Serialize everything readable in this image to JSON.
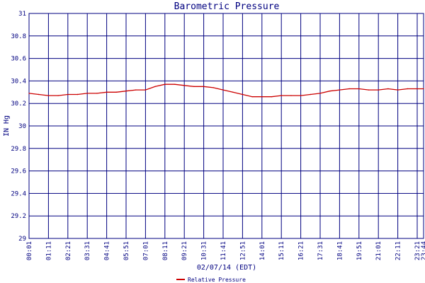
{
  "chart_data": {
    "type": "line",
    "title": "Barometric Pressure",
    "xlabel": "02/07/14 (EDT)",
    "ylabel": "IN Hg",
    "ylim": [
      29,
      31
    ],
    "yticks": [
      "29",
      "29.2",
      "29.4",
      "29.6",
      "29.8",
      "30",
      "30.2",
      "30.4",
      "30.6",
      "30.8",
      "31"
    ],
    "x_tick_labels": [
      "00:01",
      "01:11",
      "02:21",
      "03:31",
      "04:41",
      "05:51",
      "07:01",
      "08:11",
      "09:21",
      "10:31",
      "11:41",
      "12:51",
      "14:01",
      "15:11",
      "16:21",
      "17:31",
      "18:41",
      "19:51",
      "21:01",
      "22:11",
      "23:21",
      "23:44"
    ],
    "grid": true,
    "legend_position": "bottom-center",
    "series": [
      {
        "name": "Relative Pressure",
        "color": "#cc0000",
        "x": [
          "00:01",
          "00:36",
          "01:11",
          "01:46",
          "02:21",
          "02:56",
          "03:31",
          "04:06",
          "04:41",
          "05:16",
          "05:51",
          "06:26",
          "07:01",
          "07:36",
          "08:11",
          "08:46",
          "09:21",
          "09:56",
          "10:31",
          "11:06",
          "11:41",
          "12:16",
          "12:51",
          "13:26",
          "14:01",
          "14:36",
          "15:11",
          "15:46",
          "16:21",
          "16:56",
          "17:31",
          "18:06",
          "18:41",
          "19:16",
          "19:51",
          "20:26",
          "21:01",
          "21:36",
          "22:11",
          "22:46",
          "23:21",
          "23:44"
        ],
        "values": [
          30.29,
          30.28,
          30.27,
          30.27,
          30.28,
          30.28,
          30.29,
          30.29,
          30.3,
          30.3,
          30.31,
          30.32,
          30.32,
          30.35,
          30.37,
          30.37,
          30.36,
          30.35,
          30.35,
          30.34,
          30.32,
          30.3,
          30.28,
          30.26,
          30.26,
          30.26,
          30.27,
          30.27,
          30.27,
          30.28,
          30.29,
          30.31,
          30.32,
          30.33,
          30.33,
          30.32,
          30.32,
          30.33,
          30.32,
          30.33,
          30.33,
          30.33
        ]
      }
    ]
  }
}
